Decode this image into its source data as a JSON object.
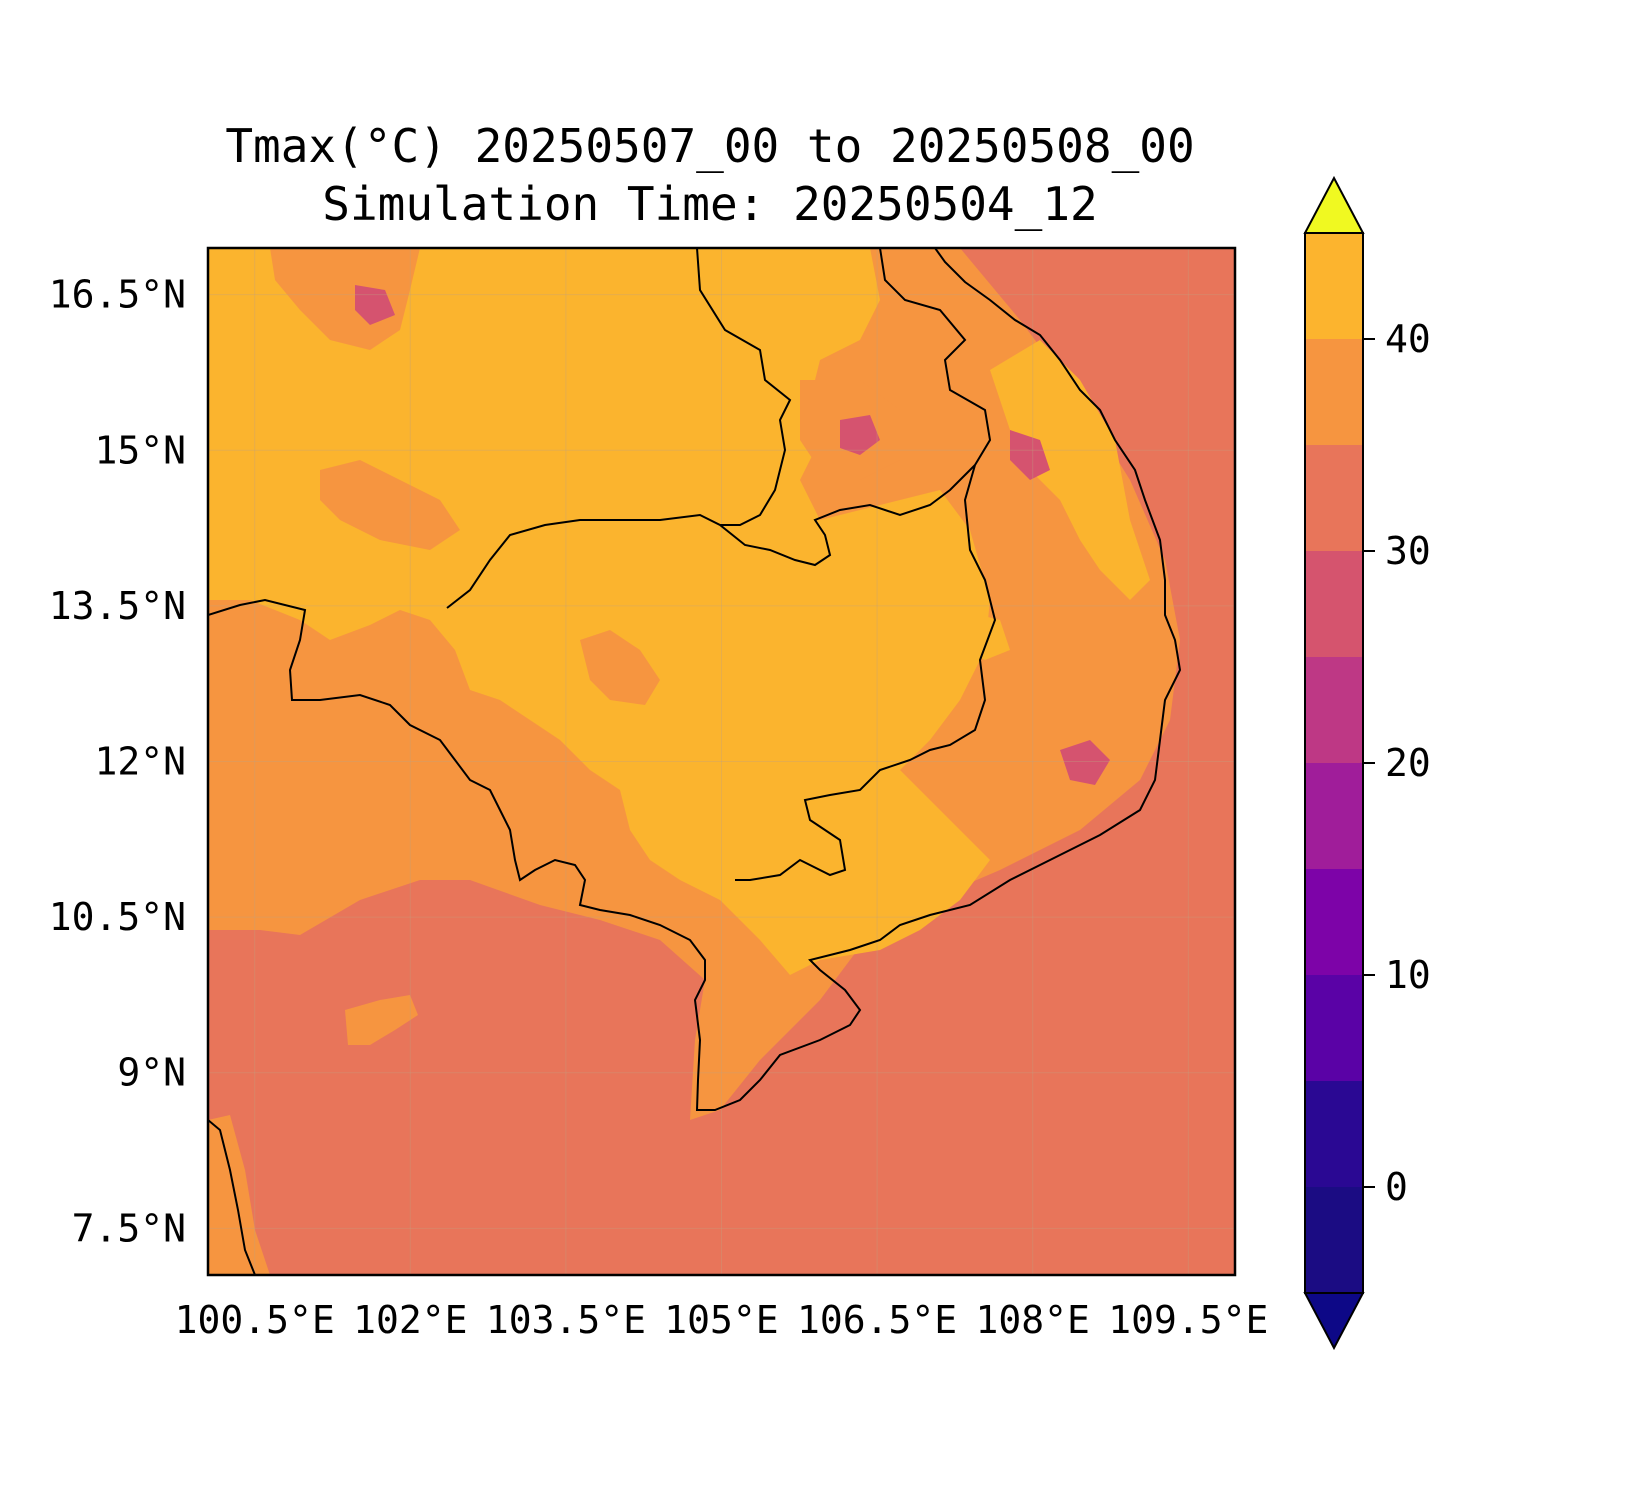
{
  "title": {
    "line1": "Tmax(°C) 20250507_00 to 20250508_00",
    "line2": "Simulation Time: 20250504_12"
  },
  "map": {
    "extent": {
      "lon_min": 100.05,
      "lon_max": 109.95,
      "lat_min": 7.05,
      "lat_max": 16.95
    },
    "lat_ticks": [
      {
        "value": 16.5,
        "label": "16.5°N"
      },
      {
        "value": 15.0,
        "label": "15°N"
      },
      {
        "value": 13.5,
        "label": "13.5°N"
      },
      {
        "value": 12.0,
        "label": "12°N"
      },
      {
        "value": 10.5,
        "label": "10.5°N"
      },
      {
        "value": 9.0,
        "label": "9°N"
      },
      {
        "value": 7.5,
        "label": "7.5°N"
      }
    ],
    "lon_ticks": [
      {
        "value": 100.5,
        "label": "100.5°E"
      },
      {
        "value": 102.0,
        "label": "102°E"
      },
      {
        "value": 103.5,
        "label": "103.5°E"
      },
      {
        "value": 105.0,
        "label": "105°E"
      },
      {
        "value": 106.5,
        "label": "106.5°E"
      },
      {
        "value": 108.0,
        "label": "108°E"
      },
      {
        "value": 109.5,
        "label": "109.5°E"
      }
    ],
    "gridlines": true,
    "colors": {
      "sea_25_30": "#e8755a",
      "warm_30_35": "#f69540",
      "hot_35_40": "#fbb42e",
      "cool_20_25": "#d5536f",
      "cooler_15_20": "#c43c86",
      "border": "#000000"
    }
  },
  "colorbar": {
    "boundaries": [
      -5,
      0,
      5,
      10,
      15,
      20,
      25,
      30,
      35,
      40,
      45
    ],
    "colors": [
      "#1b0c83",
      "#2a0893",
      "#5a02a6",
      "#7d03a8",
      "#a01d9a",
      "#be3885",
      "#d5546e",
      "#e8755a",
      "#f69540",
      "#fcb42e",
      "#f3e220"
    ],
    "extend_low_color": "#0d0887",
    "extend_high_color": "#f0f921",
    "ticks": [
      {
        "value": 0,
        "label": "0"
      },
      {
        "value": 10,
        "label": "10"
      },
      {
        "value": 20,
        "label": "20"
      },
      {
        "value": 30,
        "label": "30"
      },
      {
        "value": 40,
        "label": "40"
      }
    ]
  }
}
